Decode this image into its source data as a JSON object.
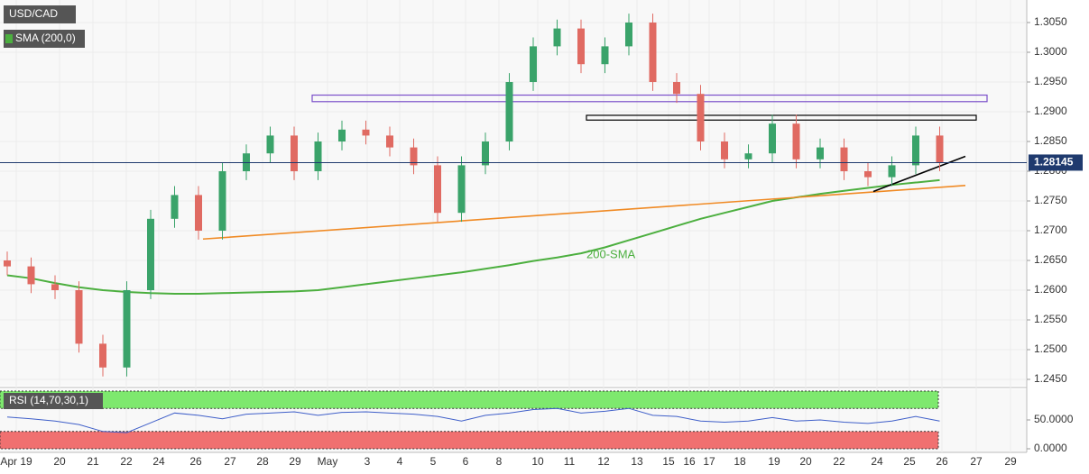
{
  "chart_data": {
    "type": "candlestick",
    "title": "USD/CAD",
    "indicator_label": "SMA (200,0)",
    "sma_annotation": "200-SMA",
    "x_labels": [
      "Apr 19",
      "20",
      "21",
      "22",
      "24",
      "26",
      "27",
      "28",
      "29",
      "May",
      "3",
      "4",
      "5",
      "6",
      "8",
      "10",
      "11",
      "12",
      "13",
      "15",
      "16",
      "17",
      "18",
      "19",
      "20",
      "22",
      "24",
      "25",
      "26",
      "27",
      "29"
    ],
    "open": [
      1.265,
      1.264,
      1.261,
      1.26,
      1.251,
      1.247,
      1.26,
      1.272,
      1.276,
      1.27,
      1.28,
      1.283,
      1.286,
      1.28,
      1.285,
      1.287,
      1.286,
      1.284,
      1.281,
      1.273,
      1.281,
      1.285,
      1.295,
      1.301,
      1.304,
      1.298,
      1.301,
      1.305,
      1.295,
      1.293,
      1.285,
      1.282,
      1.283,
      1.288,
      1.282,
      1.284,
      1.28,
      1.279,
      1.281,
      1.286
    ],
    "high": [
      1.2665,
      1.2655,
      1.2625,
      1.2615,
      1.2525,
      1.2615,
      1.2735,
      1.2775,
      1.2775,
      1.2815,
      1.2845,
      1.2875,
      1.2875,
      1.2865,
      1.2885,
      1.2885,
      1.2875,
      1.2855,
      1.2825,
      1.2825,
      1.2865,
      1.2965,
      1.3025,
      1.3055,
      1.3055,
      1.3025,
      1.3065,
      1.3065,
      1.2965,
      1.2945,
      1.2865,
      1.2845,
      1.2895,
      1.2895,
      1.2855,
      1.2855,
      1.2815,
      1.2825,
      1.2875,
      1.2875
    ],
    "low": [
      1.2625,
      1.2595,
      1.2585,
      1.2495,
      1.2455,
      1.2455,
      1.2585,
      1.2705,
      1.2685,
      1.2685,
      1.2785,
      1.2815,
      1.2785,
      1.2785,
      1.2835,
      1.2845,
      1.2825,
      1.2795,
      1.2715,
      1.2715,
      1.2795,
      1.2835,
      1.2935,
      1.2995,
      1.2965,
      1.2965,
      1.2995,
      1.2935,
      1.2915,
      1.2835,
      1.2805,
      1.2805,
      1.2815,
      1.2805,
      1.2805,
      1.2785,
      1.2775,
      1.2775,
      1.2795,
      1.28
    ],
    "close": [
      1.264,
      1.261,
      1.26,
      1.251,
      1.247,
      1.26,
      1.272,
      1.276,
      1.27,
      1.28,
      1.283,
      1.286,
      1.28,
      1.285,
      1.287,
      1.286,
      1.284,
      1.281,
      1.273,
      1.281,
      1.285,
      1.295,
      1.301,
      1.304,
      1.298,
      1.301,
      1.305,
      1.295,
      1.293,
      1.285,
      1.282,
      1.283,
      1.288,
      1.282,
      1.284,
      1.28,
      1.279,
      1.281,
      1.286,
      1.28145
    ],
    "up_color": "#3aa36a",
    "down_color": "#e06a62",
    "sma": {
      "color": "#4caf3f",
      "values": [
        1.2625,
        1.262,
        1.2612,
        1.2605,
        1.26,
        1.2597,
        1.2595,
        1.2594,
        1.2594,
        1.2595,
        1.2596,
        1.2597,
        1.2598,
        1.26,
        1.2605,
        1.261,
        1.2615,
        1.262,
        1.2625,
        1.263,
        1.2636,
        1.2642,
        1.2649,
        1.2655,
        1.2662,
        1.2672,
        1.2684,
        1.2696,
        1.2708,
        1.272,
        1.273,
        1.274,
        1.275,
        1.2756,
        1.2762,
        1.2767,
        1.2772,
        1.2777,
        1.2781,
        1.2785
      ]
    },
    "zones": [
      {
        "low": 1.2917,
        "high": 1.2928,
        "color": "#7b4fc9"
      },
      {
        "low": 1.2886,
        "high": 1.2894,
        "color": "#000000"
      }
    ],
    "trendlines": [
      {
        "from": 1.2686,
        "to": 1.2776,
        "color": "#f08a24"
      },
      {
        "from": 1.2766,
        "to": 1.2825,
        "color": "#000000"
      }
    ],
    "ylim": [
      1.24394,
      1.30879
    ],
    "yticks": [
      {
        "value": 1.245,
        "label": "1.2450"
      },
      {
        "value": 1.25,
        "label": "1.2500"
      },
      {
        "value": 1.255,
        "label": "1.2550"
      },
      {
        "value": 1.26,
        "label": "1.2600"
      },
      {
        "value": 1.265,
        "label": "1.2650"
      },
      {
        "value": 1.27,
        "label": "1.2700"
      },
      {
        "value": 1.275,
        "label": "1.2750"
      },
      {
        "value": 1.28,
        "label": "1.2800"
      },
      {
        "value": 1.285,
        "label": "1.2850"
      },
      {
        "value": 1.29,
        "label": "1.2900"
      },
      {
        "value": 1.295,
        "label": "1.2950"
      },
      {
        "value": 1.3,
        "label": "1.3000"
      },
      {
        "value": 1.305,
        "label": "1.3050"
      }
    ],
    "grid": true,
    "rsi": {
      "label": "RSI (14,70,30,1)",
      "color": "#3f5fc9",
      "values": [
        55,
        52,
        48,
        42,
        30,
        28,
        45,
        62,
        58,
        52,
        60,
        62,
        64,
        58,
        63,
        64,
        62,
        60,
        56,
        48,
        58,
        62,
        68,
        70,
        62,
        65,
        70,
        58,
        56,
        48,
        46,
        48,
        54,
        48,
        50,
        46,
        44,
        48,
        56,
        48
      ],
      "ylim": [
        0,
        100
      ],
      "yticks": [
        {
          "value": 0,
          "label": "0.0000"
        },
        {
          "value": 50,
          "label": "50.0000"
        }
      ],
      "overbought": [
        70,
        100
      ],
      "oversold": [
        0,
        30
      ]
    }
  }
}
